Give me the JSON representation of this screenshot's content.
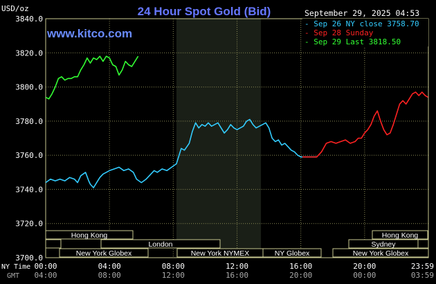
{
  "chart_data": {
    "type": "line",
    "title": "24 Hour Spot Gold (Bid)",
    "ylabel": "USD/oz",
    "site": "www.kitco.com",
    "timestamp": "September 29, 2025 04:53",
    "ylim": [
      3700,
      3840
    ],
    "yticks": [
      "3840.0",
      "3820.0",
      "3800.0",
      "3780.0",
      "3760.0",
      "3740.0",
      "3720.0",
      "3700.0"
    ],
    "grid": true,
    "legend": [
      {
        "text": "Sep 26 NY close 3758.70",
        "color": "#33ccff"
      },
      {
        "text": "Sep 28 Sunday",
        "color": "#ff2222"
      },
      {
        "text": "Sep 29 Last 3818.50",
        "color": "#33ff33"
      }
    ],
    "x_axis": {
      "ny_label": "NY Time",
      "gmt_label": "GMT",
      "ny_ticks": [
        "00:00",
        "04:00",
        "08:00",
        "12:00",
        "16:00",
        "20:00",
        "23:59"
      ],
      "gmt_ticks": [
        "04:00",
        "08:00",
        "12:00",
        "16:00",
        "20:00",
        "00:00",
        "03:59"
      ]
    },
    "sessions": [
      "Hong Kong",
      "London",
      "New York Globex",
      "New York NYMEX",
      "NY Globex",
      "Hong Kong",
      "Sydney",
      "New York Globex"
    ],
    "series": [
      {
        "name": "Sep 26",
        "color": "#33ccff",
        "x": [
          0,
          0.3,
          0.6,
          0.9,
          1.2,
          1.5,
          1.8,
          2.0,
          2.2,
          2.5,
          2.7,
          2.8,
          3.0,
          3.2,
          3.4,
          3.6,
          3.8,
          4.0,
          4.3,
          4.6,
          4.9,
          5.2,
          5.5,
          5.7,
          6.0,
          6.3,
          6.5,
          6.8,
          7.0,
          7.3,
          7.6,
          7.9,
          8.2,
          8.5,
          8.7,
          9.0,
          9.2,
          9.4,
          9.6,
          9.8,
          10.0,
          10.2,
          10.4,
          10.6,
          10.8,
          11.0,
          11.2,
          11.4,
          11.6,
          11.8,
          12.0,
          12.2,
          12.4,
          12.6,
          12.8,
          13.0,
          13.2,
          13.4,
          13.6,
          13.8,
          14.0,
          14.2,
          14.4,
          14.6,
          14.8,
          15.0,
          15.2,
          15.4,
          15.6,
          15.8,
          16.0,
          16.2,
          16.4,
          16.6,
          16.8,
          17.0
        ],
        "values": [
          3744,
          3746,
          3745,
          3746,
          3745,
          3747,
          3746,
          3744,
          3748,
          3750,
          3745,
          3743,
          3741,
          3744,
          3747,
          3749,
          3750,
          3751,
          3752,
          3753,
          3751,
          3752,
          3750,
          3746,
          3744,
          3746,
          3748,
          3751,
          3750,
          3752,
          3751,
          3753,
          3755,
          3764,
          3763,
          3767,
          3774,
          3779,
          3776,
          3778,
          3777,
          3779,
          3777,
          3778,
          3779,
          3776,
          3773,
          3775,
          3778,
          3776,
          3775,
          3776,
          3777,
          3780,
          3781,
          3778,
          3776,
          3777,
          3778,
          3779,
          3776,
          3770,
          3768,
          3769,
          3766,
          3767,
          3765,
          3763,
          3762,
          3760,
          3759,
          3759,
          3759,
          3759,
          3759,
          3759
        ]
      },
      {
        "name": "Sep 28",
        "color": "#ff2222",
        "x": [
          16.1,
          16.4,
          16.7,
          17.0,
          17.3,
          17.6,
          17.9,
          18.2,
          18.5,
          18.8,
          19.1,
          19.4,
          19.6,
          19.8,
          20.0,
          20.2,
          20.4,
          20.6,
          20.8,
          21.0,
          21.2,
          21.4,
          21.6,
          21.8,
          22.0,
          22.2,
          22.4,
          22.6,
          22.8,
          23.0,
          23.2,
          23.4,
          23.6,
          23.8,
          23.98
        ],
        "values": [
          3759,
          3759,
          3759,
          3759,
          3762,
          3767,
          3768,
          3767,
          3768,
          3769,
          3767,
          3768,
          3770,
          3770,
          3773,
          3775,
          3778,
          3783,
          3786,
          3780,
          3775,
          3772,
          3773,
          3778,
          3784,
          3790,
          3792,
          3790,
          3793,
          3796,
          3797,
          3795,
          3797,
          3795,
          3794
        ]
      },
      {
        "name": "Sep 29",
        "color": "#33ff33",
        "x": [
          0,
          0.2,
          0.4,
          0.6,
          0.8,
          1.0,
          1.2,
          1.4,
          1.6,
          1.8,
          2.0,
          2.2,
          2.4,
          2.6,
          2.8,
          3.0,
          3.2,
          3.4,
          3.6,
          3.8,
          4.0,
          4.2,
          4.4,
          4.6,
          4.8,
          5.0,
          5.2,
          5.4,
          5.6,
          5.8
        ],
        "values": [
          3794,
          3793,
          3796,
          3800,
          3805,
          3806,
          3804,
          3805,
          3805,
          3806,
          3806,
          3810,
          3813,
          3817,
          3814,
          3817,
          3816,
          3818,
          3815,
          3818,
          3817,
          3813,
          3812,
          3807,
          3810,
          3815,
          3813,
          3812,
          3815,
          3818
        ]
      }
    ]
  }
}
